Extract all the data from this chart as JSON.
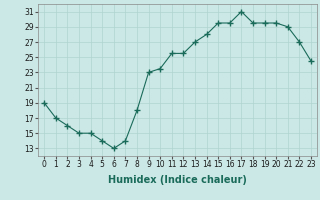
{
  "x": [
    0,
    1,
    2,
    3,
    4,
    5,
    6,
    7,
    8,
    9,
    10,
    11,
    12,
    13,
    14,
    15,
    16,
    17,
    18,
    19,
    20,
    21,
    22,
    23
  ],
  "y": [
    19,
    17,
    16,
    15,
    15,
    14,
    13,
    14,
    18,
    23,
    23.5,
    25.5,
    25.5,
    27,
    28,
    29.5,
    29.5,
    31,
    29.5,
    29.5,
    29.5,
    29,
    27,
    24.5
  ],
  "line_color": "#1a6b5a",
  "marker": "+",
  "marker_size": 4,
  "bg_color": "#cce8e6",
  "grid_color": "#b0d4d0",
  "xlabel": "Humidex (Indice chaleur)",
  "ylim": [
    12,
    32
  ],
  "yticks": [
    13,
    15,
    17,
    19,
    21,
    23,
    25,
    27,
    29,
    31
  ],
  "xticks": [
    0,
    1,
    2,
    3,
    4,
    5,
    6,
    7,
    8,
    9,
    10,
    11,
    12,
    13,
    14,
    15,
    16,
    17,
    18,
    19,
    20,
    21,
    22,
    23
  ],
  "tick_label_size": 5.5,
  "xlabel_size": 7.0
}
